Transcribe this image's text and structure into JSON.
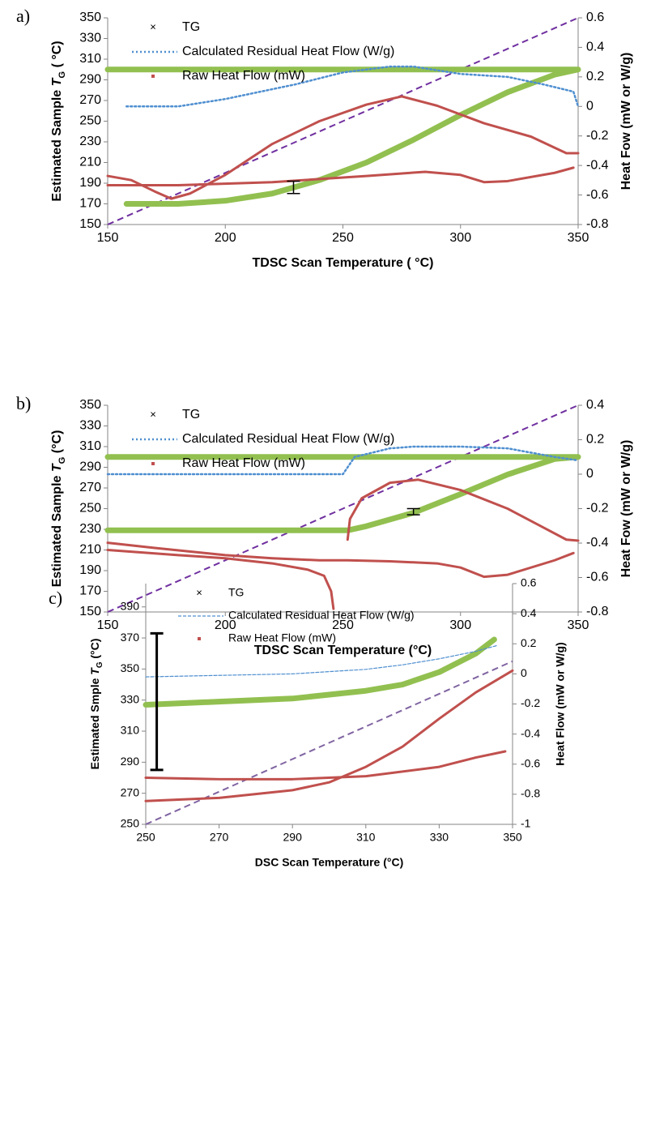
{
  "chart_data": [
    {
      "type": "line",
      "panel_label": "a)",
      "x_label": "TDSC Scan Temperature ( °C)",
      "y_label": [
        "Estimated Sample ",
        "T",
        "G",
        " ( °C)"
      ],
      "y2_label": "Heat Fow (mW or W/g)",
      "xlim": [
        150,
        350
      ],
      "xticks": [
        150,
        200,
        250,
        300,
        350
      ],
      "ylim": [
        150,
        350
      ],
      "yticks": [
        150,
        170,
        190,
        210,
        230,
        250,
        270,
        290,
        310,
        330,
        350
      ],
      "y2lim": [
        -0.8,
        0.6
      ],
      "y2ticks": [
        -0.8,
        -0.6,
        -0.4,
        -0.2,
        0,
        0.2,
        0.4,
        0.6
      ],
      "legend": "upper left",
      "series": [
        {
          "name": "TG",
          "color": "#92c050",
          "style": "markers",
          "x": [
            150,
            350,
            null,
            158,
            180,
            200,
            220,
            240,
            260,
            280,
            300,
            320,
            340,
            350
          ],
          "values": [
            300,
            300,
            null,
            170,
            170,
            173,
            180,
            193,
            210,
            232,
            256,
            278,
            295,
            300
          ]
        },
        {
          "name": "Calculated Residual Heat Flow (W/g)",
          "color": "#4f8fd0",
          "style": "dotted",
          "axis": "y2",
          "x": [
            158,
            180,
            200,
            230,
            250,
            270,
            280,
            300,
            320,
            335,
            348,
            350
          ],
          "values": [
            0,
            0,
            0.05,
            0.15,
            0.23,
            0.27,
            0.27,
            0.22,
            0.2,
            0.15,
            0.1,
            0
          ]
        },
        {
          "name": "Raw Heat Flow (mW)",
          "color": "#c0504d",
          "style": "dots",
          "axis": "y2",
          "x": [
            150,
            160,
            170,
            177,
            185,
            200,
            220,
            240,
            260,
            275,
            290,
            310,
            330,
            345,
            350,
            null,
            150,
            180,
            220,
            260,
            285,
            300,
            310,
            320,
            340,
            348
          ],
          "values": [
            -0.471,
            -0.499,
            -0.576,
            -0.625,
            -0.59,
            -0.464,
            -0.254,
            -0.1,
            0.012,
            0.068,
            0.005,
            -0.114,
            -0.205,
            -0.317,
            -0.317,
            null,
            -0.534,
            -0.534,
            -0.513,
            -0.471,
            -0.443,
            -0.464,
            -0.513,
            -0.506,
            -0.45,
            -0.415
          ]
        }
      ],
      "diagonal": {
        "color": "#7030a0",
        "x": [
          150,
          350
        ],
        "values": [
          150,
          350
        ]
      },
      "error_bar": {
        "x": 229,
        "value": 186,
        "error": 6
      }
    },
    {
      "type": "line",
      "panel_label": "b)",
      "x_label": "TDSC Scan Temperature (°C)",
      "y_label": [
        "Estimated Sample ",
        "T",
        "G",
        " (°C)"
      ],
      "y2_label": "Heat Fow (mW or W/g)",
      "xlim": [
        150,
        350
      ],
      "xticks": [
        150,
        200,
        250,
        300,
        350
      ],
      "ylim": [
        150,
        350
      ],
      "yticks": [
        150,
        170,
        190,
        210,
        230,
        250,
        270,
        290,
        310,
        330,
        350
      ],
      "y2lim": [
        -0.8,
        0.4
      ],
      "y2ticks": [
        -0.8,
        -0.6,
        -0.4,
        -0.2,
        0,
        0.2,
        0.4
      ],
      "legend": "upper left",
      "series": [
        {
          "name": "TG",
          "color": "#92c050",
          "style": "markers",
          "x": [
            150,
            350,
            null,
            150,
            252,
            260,
            280,
            300,
            320,
            340,
            350
          ],
          "values": [
            300,
            300,
            null,
            229,
            229,
            233,
            246,
            264,
            283,
            298,
            300
          ]
        },
        {
          "name": "Calculated Residual Heat Flow (W/g)",
          "color": "#4f8fd0",
          "style": "dotted",
          "axis": "y2",
          "x": [
            150,
            250,
            255,
            270,
            280,
            300,
            320,
            340,
            350
          ],
          "values": [
            0,
            0,
            0.1,
            0.15,
            0.16,
            0.16,
            0.15,
            0.1,
            0.08
          ]
        },
        {
          "name": "Raw Heat Flow (mW)",
          "color": "#c0504d",
          "style": "dots",
          "axis": "y2",
          "x": [
            150,
            170,
            200,
            220,
            240,
            252,
            270,
            290,
            300,
            310,
            320,
            340,
            348,
            null,
            150,
            180,
            200,
            220,
            235,
            242,
            245,
            246,
            null,
            252,
            253,
            258,
            270,
            282,
            300,
            320,
            335,
            345,
            350
          ],
          "values": [
            -0.398,
            -0.428,
            -0.47,
            -0.488,
            -0.5,
            -0.5,
            -0.506,
            -0.518,
            -0.542,
            -0.596,
            -0.584,
            -0.5,
            -0.458,
            null,
            -0.44,
            -0.47,
            -0.488,
            -0.518,
            -0.554,
            -0.59,
            -0.68,
            -0.782,
            null,
            -0.38,
            -0.26,
            -0.14,
            -0.05,
            -0.032,
            -0.092,
            -0.2,
            -0.308,
            -0.38,
            -0.386
          ]
        }
      ],
      "diagonal": {
        "color": "#7030a0",
        "x": [
          150,
          350
        ],
        "values": [
          150,
          350
        ]
      },
      "error_bar": {
        "x": 280,
        "value": 247,
        "error": 3
      }
    },
    {
      "type": "line",
      "panel_label": "c)",
      "x_label": "DSC Scan Temperature (°C)",
      "y_label": [
        "Estimated Smple ",
        "T",
        "G",
        " (°C)"
      ],
      "y2_label": "Heat Flow (mW or W/g)",
      "xlim": [
        250,
        350
      ],
      "xticks": [
        250,
        270,
        290,
        310,
        330,
        350
      ],
      "ylim": [
        250,
        405
      ],
      "yticks": [
        250,
        270,
        290,
        310,
        330,
        350,
        370,
        390
      ],
      "y2lim": [
        -1,
        0.6
      ],
      "y2ticks": [
        -1,
        -0.8,
        -0.6,
        -0.4,
        -0.2,
        0,
        0.2,
        0.4,
        0.6
      ],
      "legend": "upper left",
      "series": [
        {
          "name": "TG",
          "color": "#92c050",
          "style": "markers",
          "x": [
            250,
            270,
            290,
            310,
            320,
            330,
            340,
            345
          ],
          "values": [
            327,
            329,
            331,
            336,
            340,
            348,
            360,
            369
          ]
        },
        {
          "name": "Calculated Residual Heat Flow (W/g)",
          "color": "#4f8fd0",
          "style": "dashed",
          "axis": "y2",
          "x": [
            250,
            290,
            310,
            320,
            330,
            340,
            346
          ],
          "values": [
            -0.02,
            0,
            0.03,
            0.06,
            0.1,
            0.15,
            0.19
          ]
        },
        {
          "name": "Raw Heat Flow (mW)",
          "color": "#c0504d",
          "style": "dots",
          "axis": "y2",
          "x": [
            250,
            270,
            290,
            300,
            310,
            320,
            330,
            340,
            350,
            null,
            250,
            270,
            290,
            310,
            330,
            340,
            348
          ],
          "values": [
            -0.845,
            -0.824,
            -0.773,
            -0.721,
            -0.618,
            -0.484,
            -0.298,
            -0.123,
            0.022,
            null,
            -0.69,
            -0.7,
            -0.7,
            -0.68,
            -0.618,
            -0.556,
            -0.515
          ]
        }
      ],
      "diagonal": {
        "color": "#8064a2",
        "x": [
          250,
          350
        ],
        "values": [
          250,
          355
        ]
      },
      "error_bar": {
        "x": 253,
        "value": 329,
        "error": 44
      }
    }
  ]
}
